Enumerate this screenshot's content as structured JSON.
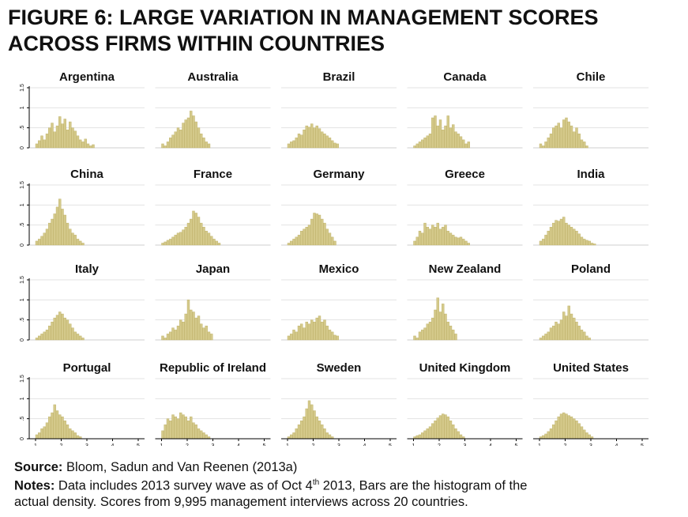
{
  "figure": {
    "title_line1": "FIGURE 6: LARGE VARIATION IN MANAGEMENT SCORES",
    "title_line2": "ACROSS FIRMS WITHIN COUNTRIES"
  },
  "footer": {
    "source_label": "Source:",
    "source_text": " Bloom, Sadun and Van Reenen (2013a)",
    "notes_label": "Notes:",
    "notes_text_a": " Data includes 2013 survey wave as of Oct 4",
    "notes_sup": "th",
    "notes_text_b": " 2013, Bars are the histogram of the",
    "notes_line2": "actual density. Scores from 9,995 management interviews across 20 countries."
  },
  "colors": {
    "bar": "#d4c98a",
    "bar_edge": "#bcae64",
    "grid": "#e3e3e3",
    "axis": "#000000"
  },
  "chart_data": {
    "type": "bar",
    "layout": "small-multiples 4x5",
    "x_ticks": [
      "1",
      "2",
      "3",
      "4",
      "5"
    ],
    "y_ticks": [
      "0",
      ".5",
      "1",
      "1.5"
    ],
    "xlim": [
      1,
      5
    ],
    "ylim": [
      0,
      1.5
    ],
    "bin_start": 1,
    "bin_width": 0.1,
    "panels": [
      {
        "name": "Argentina",
        "values": [
          0.1,
          0.18,
          0.3,
          0.2,
          0.35,
          0.5,
          0.62,
          0.4,
          0.55,
          0.78,
          0.6,
          0.72,
          0.45,
          0.65,
          0.5,
          0.42,
          0.3,
          0.2,
          0.15,
          0.22,
          0.1,
          0.05,
          0.08
        ]
      },
      {
        "name": "Australia",
        "values": [
          0.1,
          0.05,
          0.15,
          0.25,
          0.32,
          0.4,
          0.5,
          0.45,
          0.62,
          0.7,
          0.75,
          0.92,
          0.8,
          0.65,
          0.5,
          0.35,
          0.25,
          0.15,
          0.1
        ]
      },
      {
        "name": "Brazil",
        "values": [
          0.1,
          0.15,
          0.18,
          0.25,
          0.35,
          0.32,
          0.45,
          0.55,
          0.52,
          0.6,
          0.5,
          0.55,
          0.48,
          0.4,
          0.35,
          0.3,
          0.25,
          0.18,
          0.12,
          0.1
        ]
      },
      {
        "name": "Canada",
        "values": [
          0.05,
          0.1,
          0.15,
          0.2,
          0.25,
          0.3,
          0.35,
          0.75,
          0.8,
          0.55,
          0.7,
          0.45,
          0.55,
          0.8,
          0.5,
          0.58,
          0.4,
          0.35,
          0.28,
          0.2,
          0.1,
          0.15
        ]
      },
      {
        "name": "Chile",
        "values": [
          0.1,
          0.05,
          0.15,
          0.25,
          0.35,
          0.5,
          0.55,
          0.62,
          0.5,
          0.7,
          0.75,
          0.65,
          0.55,
          0.4,
          0.5,
          0.35,
          0.2,
          0.15,
          0.05
        ]
      },
      {
        "name": "China",
        "values": [
          0.1,
          0.15,
          0.22,
          0.3,
          0.4,
          0.55,
          0.65,
          0.78,
          0.95,
          1.15,
          0.9,
          0.75,
          0.55,
          0.4,
          0.3,
          0.25,
          0.15,
          0.1,
          0.05
        ]
      },
      {
        "name": "France",
        "values": [
          0.05,
          0.08,
          0.12,
          0.15,
          0.2,
          0.25,
          0.3,
          0.32,
          0.38,
          0.45,
          0.55,
          0.65,
          0.85,
          0.8,
          0.7,
          0.55,
          0.45,
          0.35,
          0.3,
          0.22,
          0.15,
          0.1,
          0.05
        ]
      },
      {
        "name": "Germany",
        "values": [
          0.05,
          0.1,
          0.15,
          0.2,
          0.25,
          0.35,
          0.4,
          0.45,
          0.5,
          0.65,
          0.8,
          0.78,
          0.75,
          0.65,
          0.55,
          0.4,
          0.3,
          0.2,
          0.1
        ]
      },
      {
        "name": "Greece",
        "values": [
          0.1,
          0.2,
          0.35,
          0.3,
          0.55,
          0.45,
          0.4,
          0.5,
          0.45,
          0.55,
          0.4,
          0.45,
          0.5,
          0.35,
          0.3,
          0.25,
          0.2,
          0.18,
          0.2,
          0.15,
          0.1,
          0.05
        ]
      },
      {
        "name": "India",
        "values": [
          0.1,
          0.15,
          0.25,
          0.35,
          0.45,
          0.55,
          0.62,
          0.6,
          0.65,
          0.7,
          0.55,
          0.5,
          0.45,
          0.4,
          0.35,
          0.28,
          0.2,
          0.15,
          0.12,
          0.1,
          0.05,
          0.03
        ]
      },
      {
        "name": "Italy",
        "values": [
          0.05,
          0.1,
          0.15,
          0.2,
          0.25,
          0.35,
          0.45,
          0.55,
          0.62,
          0.7,
          0.65,
          0.55,
          0.5,
          0.4,
          0.3,
          0.2,
          0.15,
          0.1,
          0.05
        ]
      },
      {
        "name": "Japan",
        "values": [
          0.1,
          0.05,
          0.15,
          0.2,
          0.3,
          0.25,
          0.35,
          0.5,
          0.45,
          0.65,
          1.0,
          0.75,
          0.7,
          0.55,
          0.6,
          0.4,
          0.3,
          0.35,
          0.2,
          0.15
        ]
      },
      {
        "name": "Mexico",
        "values": [
          0.1,
          0.15,
          0.25,
          0.2,
          0.35,
          0.4,
          0.3,
          0.45,
          0.4,
          0.5,
          0.45,
          0.55,
          0.6,
          0.45,
          0.5,
          0.35,
          0.25,
          0.2,
          0.12,
          0.1
        ]
      },
      {
        "name": "New Zealand",
        "values": [
          0.1,
          0.05,
          0.2,
          0.25,
          0.3,
          0.4,
          0.45,
          0.55,
          0.75,
          1.05,
          0.7,
          0.9,
          0.65,
          0.45,
          0.35,
          0.25,
          0.15
        ]
      },
      {
        "name": "Poland",
        "values": [
          0.05,
          0.1,
          0.15,
          0.2,
          0.3,
          0.35,
          0.45,
          0.4,
          0.5,
          0.7,
          0.6,
          0.85,
          0.65,
          0.55,
          0.45,
          0.35,
          0.25,
          0.2,
          0.1,
          0.05
        ]
      },
      {
        "name": "Portugal",
        "values": [
          0.1,
          0.15,
          0.25,
          0.3,
          0.4,
          0.55,
          0.65,
          0.85,
          0.7,
          0.6,
          0.55,
          0.45,
          0.35,
          0.25,
          0.2,
          0.15,
          0.08,
          0.05
        ]
      },
      {
        "name": "Republic of Ireland",
        "values": [
          0.2,
          0.35,
          0.5,
          0.45,
          0.6,
          0.55,
          0.5,
          0.65,
          0.6,
          0.55,
          0.45,
          0.55,
          0.4,
          0.35,
          0.25,
          0.2,
          0.15,
          0.1,
          0.05
        ]
      },
      {
        "name": "Sweden",
        "values": [
          0.05,
          0.1,
          0.15,
          0.25,
          0.35,
          0.45,
          0.55,
          0.75,
          0.95,
          0.85,
          0.7,
          0.55,
          0.45,
          0.35,
          0.25,
          0.15,
          0.1,
          0.05
        ]
      },
      {
        "name": "United Kingdom",
        "values": [
          0.05,
          0.08,
          0.1,
          0.15,
          0.2,
          0.25,
          0.3,
          0.38,
          0.45,
          0.52,
          0.58,
          0.62,
          0.6,
          0.55,
          0.45,
          0.35,
          0.25,
          0.18,
          0.1,
          0.05
        ]
      },
      {
        "name": "United States",
        "values": [
          0.05,
          0.08,
          0.12,
          0.18,
          0.25,
          0.35,
          0.45,
          0.55,
          0.62,
          0.65,
          0.62,
          0.58,
          0.55,
          0.5,
          0.45,
          0.38,
          0.3,
          0.22,
          0.15,
          0.1,
          0.05
        ]
      }
    ]
  }
}
